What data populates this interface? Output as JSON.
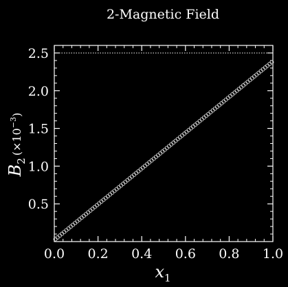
{
  "chart_data": {
    "type": "line",
    "title": "2-Magnetic Field",
    "xlabel": "x",
    "xlabel_sub": "1",
    "ylabel": "B",
    "ylabel_sub": "2",
    "ylabel_scale": "(×10",
    "ylabel_scale_exp": "−3",
    "ylabel_scale_close": ")",
    "xlim": [
      0.0,
      1.0
    ],
    "ylim": [
      0.0,
      2.6
    ],
    "xticks": [
      "0.0",
      "0.2",
      "0.4",
      "0.6",
      "0.8",
      "1.0"
    ],
    "yticks": [
      "0.5",
      "1.0",
      "1.5",
      "2.0",
      "2.5"
    ],
    "grid": false,
    "series": [
      {
        "style": "circles",
        "x_start": 0.0,
        "x_end": 1.0,
        "y_start": 0.02,
        "y_end": 2.39,
        "n_points": 100
      },
      {
        "style": "dotted",
        "x": [
          0.0,
          1.0
        ],
        "y": [
          2.5,
          2.5
        ]
      }
    ],
    "colors": {
      "background": "#000000",
      "foreground": "#ffffff",
      "markers": "#cccccc"
    }
  }
}
